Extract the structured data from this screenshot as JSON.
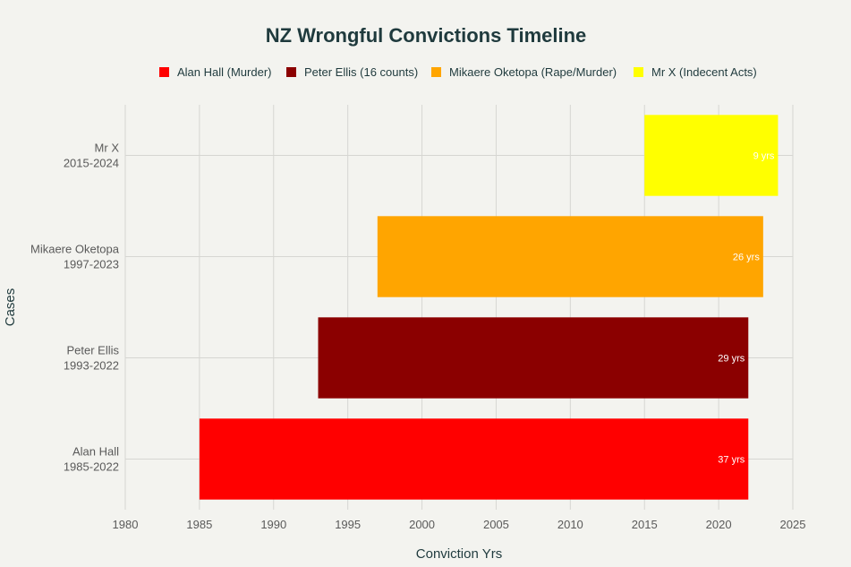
{
  "chart_data": {
    "type": "bar",
    "orientation": "horizontal",
    "title": "NZ Wrongful Convictions Timeline",
    "xlabel": "Conviction Yrs",
    "ylabel": "Cases",
    "xlim": [
      1980,
      2025
    ],
    "xticks": [
      1980,
      1985,
      1990,
      1995,
      2000,
      2005,
      2010,
      2015,
      2020,
      2025
    ],
    "grid": true,
    "legend_position": "top",
    "series": [
      {
        "name": "Alan Hall (Murder)",
        "category_line1": "Alan Hall",
        "category_line2": "1985-2022",
        "start": 1985,
        "end": 2022,
        "label": "37 yrs",
        "color": "#ff0000"
      },
      {
        "name": "Peter Ellis (16 counts)",
        "category_line1": "Peter Ellis",
        "category_line2": "1993-2022",
        "start": 1993,
        "end": 2022,
        "label": "29 yrs",
        "color": "#8b0000"
      },
      {
        "name": "Mikaere Oketopa (Rape/Murder)",
        "category_line1": "Mikaere Oketopa",
        "category_line2": "1997-2023",
        "start": 1997,
        "end": 2023,
        "label": "26 yrs",
        "color": "#ffa500"
      },
      {
        "name": "Mr X (Indecent Acts)",
        "category_line1": "Mr X",
        "category_line2": "2015-2024",
        "start": 2015,
        "end": 2024,
        "label": "9 yrs",
        "color": "#ffff00"
      }
    ]
  }
}
